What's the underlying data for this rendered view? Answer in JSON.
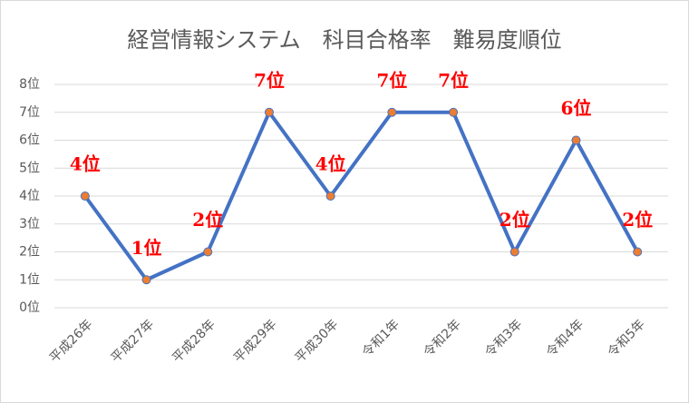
{
  "chart_data": {
    "type": "line",
    "title": "経営情報システム　科目合格率　難易度順位",
    "categories": [
      "平成26年",
      "平成27年",
      "平成28年",
      "平成29年",
      "平成30年",
      "令和1年",
      "令和2年",
      "令和3年",
      "令和4年",
      "令和5年"
    ],
    "series": [
      {
        "name": "難易度順位",
        "color": "#4472c4",
        "marker_color": "#ed7d31",
        "values": [
          4,
          1,
          2,
          7,
          4,
          7,
          7,
          2,
          6,
          2
        ],
        "value_labels": [
          "4位",
          "1位",
          "2位",
          "7位",
          "4位",
          "7位",
          "7位",
          "2位",
          "6位",
          "2位"
        ]
      }
    ],
    "ylim": [
      0,
      8
    ],
    "yticks": [
      {
        "value": 0,
        "label": "0位"
      },
      {
        "value": 1,
        "label": "1位"
      },
      {
        "value": 2,
        "label": "2位"
      },
      {
        "value": 3,
        "label": "3位"
      },
      {
        "value": 4,
        "label": "4位"
      },
      {
        "value": 5,
        "label": "5位"
      },
      {
        "value": 6,
        "label": "6位"
      },
      {
        "value": 7,
        "label": "7位"
      },
      {
        "value": 8,
        "label": "8位"
      }
    ],
    "grid": true,
    "value_label_color": "#ff0000"
  }
}
